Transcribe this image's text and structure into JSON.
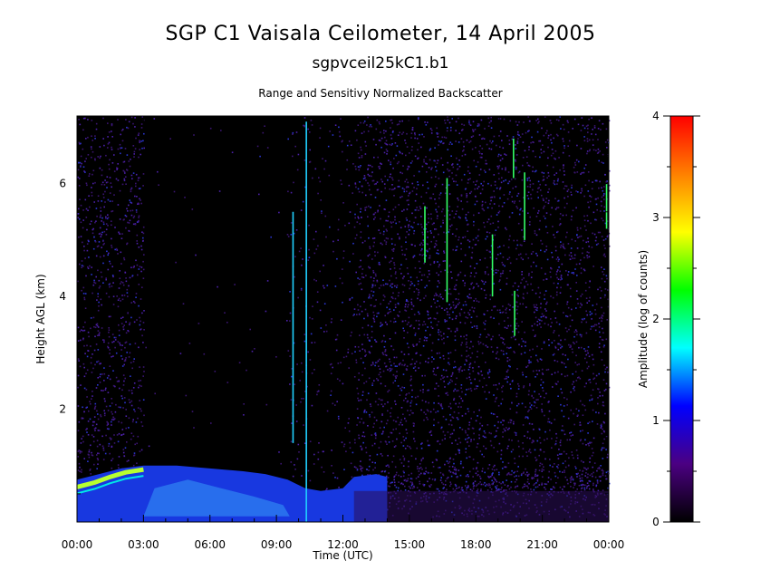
{
  "chart_data": {
    "type": "heatmap",
    "title": "SGP C1 Vaisala Ceilometer, 14 April 2005",
    "subtitle": "sgpvceil25kC1.b1",
    "plot_title": "Range and Sensitivy Normalized Backscatter",
    "xlabel": "Time (UTC)",
    "ylabel": "Height AGL (km)",
    "x_tick_labels": [
      "00:00",
      "03:00",
      "06:00",
      "09:00",
      "12:00",
      "15:00",
      "18:00",
      "21:00",
      "00:00"
    ],
    "x_tick_hours": [
      0,
      3,
      6,
      9,
      12,
      15,
      18,
      21,
      24
    ],
    "y_ticks": [
      2,
      4,
      6
    ],
    "ylim": [
      0,
      7.2
    ],
    "xlim_hours": [
      0,
      24
    ],
    "colorbar": {
      "label": "Amplitude (log of counts)",
      "range": [
        0,
        4
      ],
      "ticks": [
        0,
        1,
        2,
        3,
        4
      ],
      "colors": [
        "#000000",
        "#4b0082",
        "#0000ff",
        "#00ffff",
        "#00ff00",
        "#ffff00",
        "#ff8000",
        "#ff0000"
      ]
    },
    "features": {
      "boundary_layer_top_km": [
        {
          "hour": 0.0,
          "km": 0.75
        },
        {
          "hour": 1.0,
          "km": 0.85
        },
        {
          "hour": 2.0,
          "km": 0.95
        },
        {
          "hour": 3.0,
          "km": 1.0
        },
        {
          "hour": 4.5,
          "km": 1.0
        },
        {
          "hour": 6.0,
          "km": 0.95
        },
        {
          "hour": 7.5,
          "km": 0.9
        },
        {
          "hour": 8.5,
          "km": 0.85
        },
        {
          "hour": 9.5,
          "km": 0.75
        },
        {
          "hour": 10.3,
          "km": 0.6
        },
        {
          "hour": 11.0,
          "km": 0.55
        },
        {
          "hour": 12.0,
          "km": 0.6
        },
        {
          "hour": 12.5,
          "km": 0.8
        },
        {
          "hour": 13.5,
          "km": 0.85
        },
        {
          "hour": 14.0,
          "km": 0.8
        }
      ],
      "vertical_streaks": [
        {
          "hour": 9.75,
          "top_km": 5.5,
          "bottom_km": 1.4
        },
        {
          "hour": 10.35,
          "top_km": 7.1,
          "bottom_km": 0.0
        },
        {
          "hour": 15.7,
          "top_km": 5.6,
          "bottom_km": 4.6
        },
        {
          "hour": 16.7,
          "top_km": 6.1,
          "bottom_km": 3.9
        },
        {
          "hour": 18.75,
          "top_km": 5.1,
          "bottom_km": 4.0
        },
        {
          "hour": 19.7,
          "top_km": 6.8,
          "bottom_km": 6.1
        },
        {
          "hour": 20.2,
          "top_km": 6.2,
          "bottom_km": 5.0
        },
        {
          "hour": 19.75,
          "top_km": 4.1,
          "bottom_km": 3.3
        },
        {
          "hour": 23.9,
          "top_km": 6.0,
          "bottom_km": 5.2
        }
      ]
    }
  }
}
